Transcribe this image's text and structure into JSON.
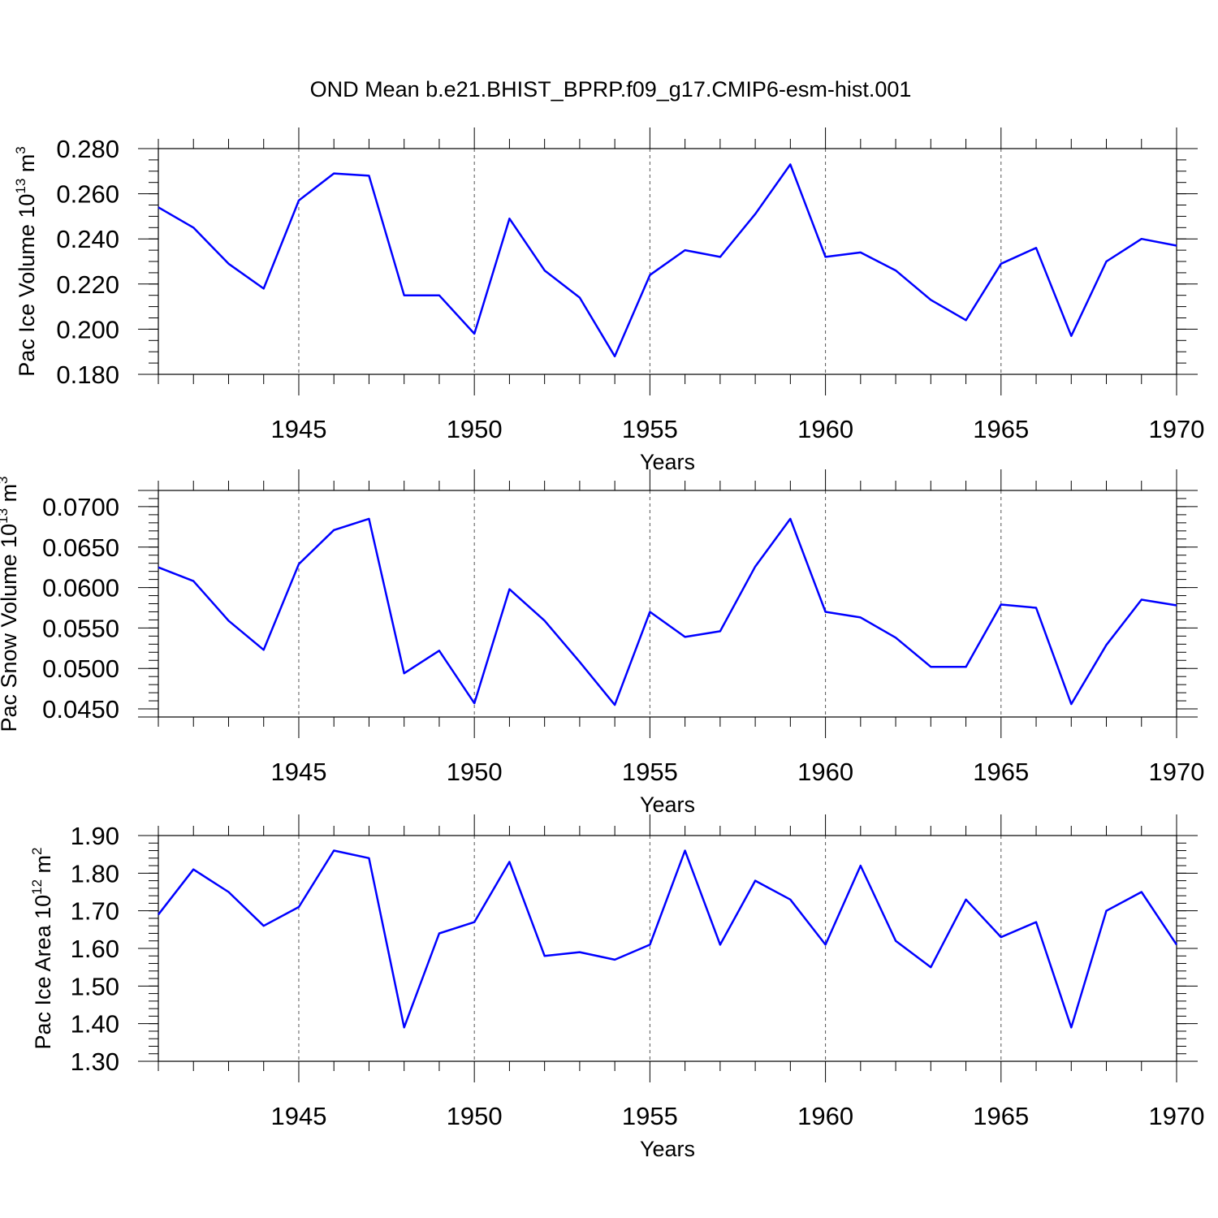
{
  "title": "OND Mean b.e21.BHIST_BPRP.f09_g17.CMIP6-esm-hist.001",
  "colors": {
    "series": "#0000ff",
    "axes": "#000000"
  },
  "chart_data": [
    {
      "type": "line",
      "ylabel": {
        "prefix": "Pac Ice Volume 10",
        "exp": "13",
        "unit": " m",
        "unit_exp": "3"
      },
      "xlabel": "Years",
      "xlim": [
        1941,
        1970
      ],
      "ylim": [
        0.18,
        0.28
      ],
      "yticks": [
        "0.180",
        "0.200",
        "0.220",
        "0.240",
        "0.260",
        "0.280"
      ],
      "ytick_values": [
        0.18,
        0.2,
        0.22,
        0.24,
        0.26,
        0.28
      ],
      "ytick_minor_step": 0.005,
      "xticks": [
        "1945",
        "1950",
        "1955",
        "1960",
        "1965",
        "1970"
      ],
      "xtick_values": [
        1945,
        1950,
        1955,
        1960,
        1965,
        1970
      ],
      "grid": "dashed vertical lines at labeled years",
      "series": [
        {
          "x": [
            1941,
            1942,
            1943,
            1944,
            1945,
            1946,
            1947,
            1948,
            1949,
            1950,
            1951,
            1952,
            1953,
            1954,
            1955,
            1956,
            1957,
            1958,
            1959,
            1960,
            1961,
            1962,
            1963,
            1964,
            1965,
            1966,
            1967,
            1968,
            1969,
            1970
          ],
          "values": [
            0.254,
            0.245,
            0.229,
            0.218,
            0.257,
            0.269,
            0.268,
            0.215,
            0.215,
            0.198,
            0.249,
            0.226,
            0.214,
            0.188,
            0.224,
            0.235,
            0.232,
            0.251,
            0.273,
            0.232,
            0.234,
            0.226,
            0.213,
            0.204,
            0.229,
            0.236,
            0.197,
            0.23,
            0.24,
            0.237
          ]
        }
      ]
    },
    {
      "type": "line",
      "ylabel": {
        "prefix": "Pac Snow Volume 10",
        "exp": "13",
        "unit": " m",
        "unit_exp": "3"
      },
      "xlabel": "Years",
      "xlim": [
        1941,
        1970
      ],
      "ylim": [
        0.044,
        0.072
      ],
      "yticks": [
        "0.0450",
        "0.0500",
        "0.0550",
        "0.0600",
        "0.0650",
        "0.0700"
      ],
      "ytick_values": [
        0.045,
        0.05,
        0.055,
        0.06,
        0.065,
        0.07
      ],
      "ytick_minor_step": 0.001,
      "xticks": [
        "1945",
        "1950",
        "1955",
        "1960",
        "1965",
        "1970"
      ],
      "xtick_values": [
        1945,
        1950,
        1955,
        1960,
        1965,
        1970
      ],
      "grid": "dashed vertical lines at labeled years",
      "series": [
        {
          "x": [
            1941,
            1942,
            1943,
            1944,
            1945,
            1946,
            1947,
            1948,
            1949,
            1950,
            1951,
            1952,
            1953,
            1954,
            1955,
            1956,
            1957,
            1958,
            1959,
            1960,
            1961,
            1962,
            1963,
            1964,
            1965,
            1966,
            1967,
            1968,
            1969,
            1970
          ],
          "values": [
            0.0625,
            0.0608,
            0.0559,
            0.0523,
            0.0629,
            0.0671,
            0.0685,
            0.0494,
            0.0522,
            0.0457,
            0.0598,
            0.0559,
            0.0508,
            0.0455,
            0.057,
            0.0539,
            0.0546,
            0.0626,
            0.0685,
            0.057,
            0.0563,
            0.0538,
            0.0502,
            0.0502,
            0.0579,
            0.0575,
            0.0456,
            0.0529,
            0.0585,
            0.0578
          ]
        }
      ]
    },
    {
      "type": "line",
      "ylabel": {
        "prefix": "Pac Ice Area 10",
        "exp": "12",
        "unit": " m",
        "unit_exp": "2"
      },
      "xlabel": "Years",
      "xlim": [
        1941,
        1970
      ],
      "ylim": [
        1.3,
        1.9
      ],
      "yticks": [
        "1.30",
        "1.40",
        "1.50",
        "1.60",
        "1.70",
        "1.80",
        "1.90"
      ],
      "ytick_values": [
        1.3,
        1.4,
        1.5,
        1.6,
        1.7,
        1.8,
        1.9
      ],
      "ytick_minor_step": 0.02,
      "xticks": [
        "1945",
        "1950",
        "1955",
        "1960",
        "1965",
        "1970"
      ],
      "xtick_values": [
        1945,
        1950,
        1955,
        1960,
        1965,
        1970
      ],
      "grid": "dashed vertical lines at labeled years",
      "series": [
        {
          "x": [
            1941,
            1942,
            1943,
            1944,
            1945,
            1946,
            1947,
            1948,
            1949,
            1950,
            1951,
            1952,
            1953,
            1954,
            1955,
            1956,
            1957,
            1958,
            1959,
            1960,
            1961,
            1962,
            1963,
            1964,
            1965,
            1966,
            1967,
            1968,
            1969,
            1970
          ],
          "values": [
            1.69,
            1.81,
            1.75,
            1.66,
            1.71,
            1.86,
            1.84,
            1.39,
            1.64,
            1.67,
            1.83,
            1.58,
            1.59,
            1.57,
            1.61,
            1.86,
            1.61,
            1.78,
            1.73,
            1.61,
            1.82,
            1.62,
            1.55,
            1.73,
            1.63,
            1.67,
            1.39,
            1.7,
            1.75,
            1.61
          ]
        }
      ]
    }
  ]
}
